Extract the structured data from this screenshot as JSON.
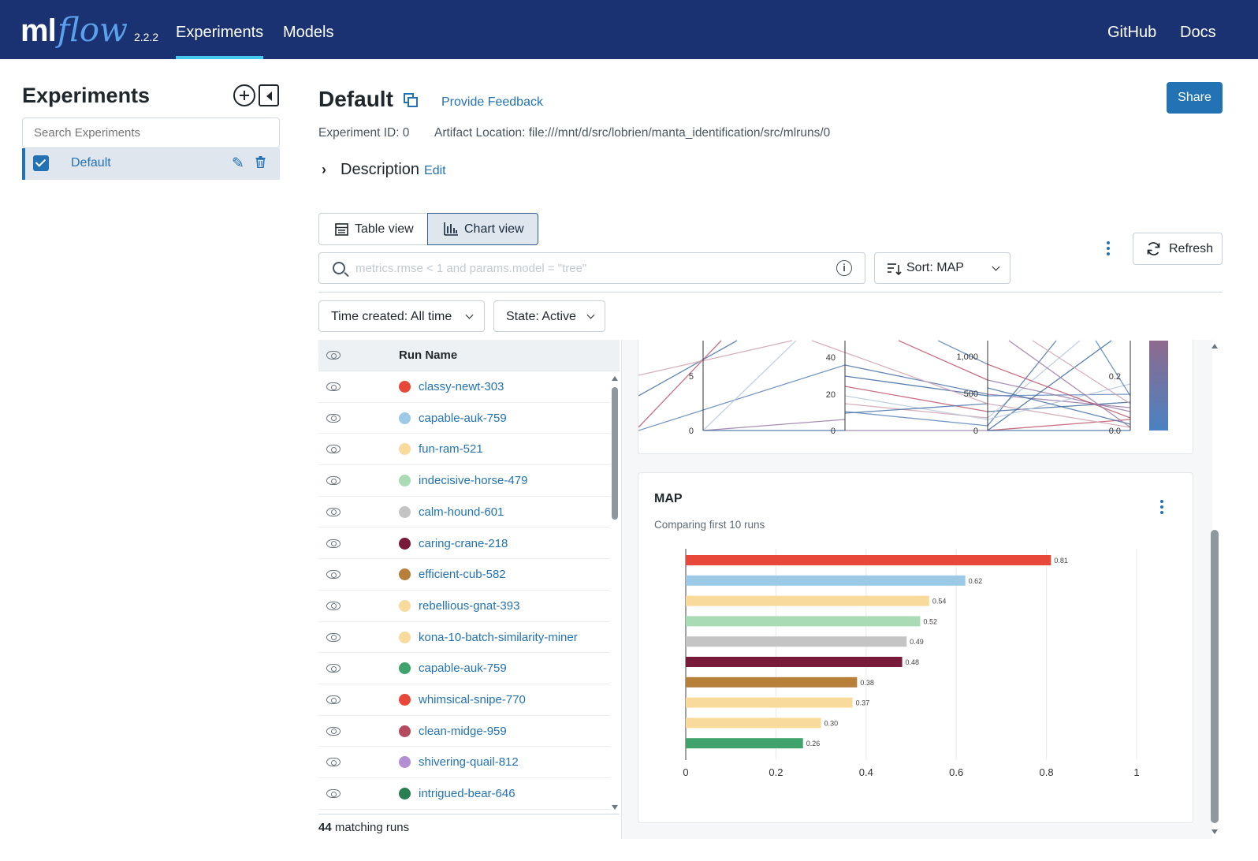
{
  "header": {
    "logo_ml": "ml",
    "logo_flow": "flow",
    "version": "2.2.2",
    "nav": [
      "Experiments",
      "Models"
    ],
    "right_links": [
      "GitHub",
      "Docs"
    ]
  },
  "sidebar": {
    "title": "Experiments",
    "search_placeholder": "Search Experiments",
    "items": [
      {
        "label": "Default",
        "checked": true
      }
    ]
  },
  "experiment": {
    "title": "Default",
    "feedback_link": "Provide Feedback",
    "share_label": "Share",
    "id_text": "Experiment ID: 0",
    "artifact_text": "Artifact Location: file:///mnt/d/src/lobrien/manta_identification/src/mlruns/0",
    "description_label": "Description",
    "edit_label": "Edit"
  },
  "toolbar": {
    "table_view": "Table view",
    "chart_view": "Chart view",
    "refresh": "Refresh",
    "search_placeholder": "metrics.rmse < 1 and params.model = \"tree\"",
    "sort_label": "Sort: MAP",
    "time_filter": "Time created: All time",
    "state_filter": "State: Active"
  },
  "runs": {
    "column_header": "Run Name",
    "rows": [
      {
        "name": "classy-newt-303",
        "color": "#e8483a"
      },
      {
        "name": "capable-auk-759",
        "color": "#9ccae6"
      },
      {
        "name": "fun-ram-521",
        "color": "#f8db9c"
      },
      {
        "name": "indecisive-horse-479",
        "color": "#a9dbb4"
      },
      {
        "name": "calm-hound-601",
        "color": "#c4c4c4"
      },
      {
        "name": "caring-crane-218",
        "color": "#781a3a"
      },
      {
        "name": "efficient-cub-582",
        "color": "#b67f3a"
      },
      {
        "name": "rebellious-gnat-393",
        "color": "#f8db9c"
      },
      {
        "name": "kona-10-batch-similarity-miner",
        "color": "#f8db9c"
      },
      {
        "name": "capable-auk-759",
        "color": "#3fa36b"
      },
      {
        "name": "whimsical-snipe-770",
        "color": "#e8483a"
      },
      {
        "name": "clean-midge-959",
        "color": "#b54b5e"
      },
      {
        "name": "shivering-quail-812",
        "color": "#b48ed2"
      },
      {
        "name": "intrigued-bear-646",
        "color": "#2a7f50"
      }
    ],
    "count": "44",
    "count_suffix": "matching runs"
  },
  "parallel_chart": {
    "axis1_ticks": [
      "5",
      "0"
    ],
    "axis2_ticks": [
      "40",
      "20",
      "0"
    ],
    "axis3_ticks": [
      "1,000",
      "500",
      "0"
    ],
    "axis4_ticks": [
      "0.2",
      "0.0"
    ]
  },
  "map_card": {
    "title": "MAP",
    "subtitle": "Comparing first 10 runs"
  },
  "chart_data": {
    "type": "bar",
    "orientation": "horizontal",
    "title": "MAP",
    "subtitle": "Comparing first 10 runs",
    "categories": [
      "classy-newt-303",
      "capable-auk-759",
      "fun-ram-521",
      "indecisive-horse-479",
      "calm-hound-601",
      "caring-crane-218",
      "efficient-cub-582",
      "rebellious-gnat-393",
      "kona-10-batch-similarity-miner",
      "capable-auk-759"
    ],
    "values": [
      0.81,
      0.62,
      0.54,
      0.52,
      0.49,
      0.48,
      0.38,
      0.37,
      0.3,
      0.26
    ],
    "labels": [
      "0.81",
      "0.62",
      "0.54",
      "0.52",
      "0.49",
      "0.48",
      "0.38",
      "0.37",
      "0.30",
      "0.26"
    ],
    "colors": [
      "#e8483a",
      "#9ccae6",
      "#f8db9c",
      "#a9dbb4",
      "#c4c4c4",
      "#781a3a",
      "#b67f3a",
      "#f8db9c",
      "#f8db9c",
      "#3fa36b"
    ],
    "xlim": [
      0,
      1
    ],
    "xticks": [
      0,
      0.2,
      0.4,
      0.6,
      0.8,
      1
    ],
    "xtick_labels": [
      "0",
      "0.2",
      "0.4",
      "0.6",
      "0.8",
      "1"
    ],
    "grid": true
  }
}
